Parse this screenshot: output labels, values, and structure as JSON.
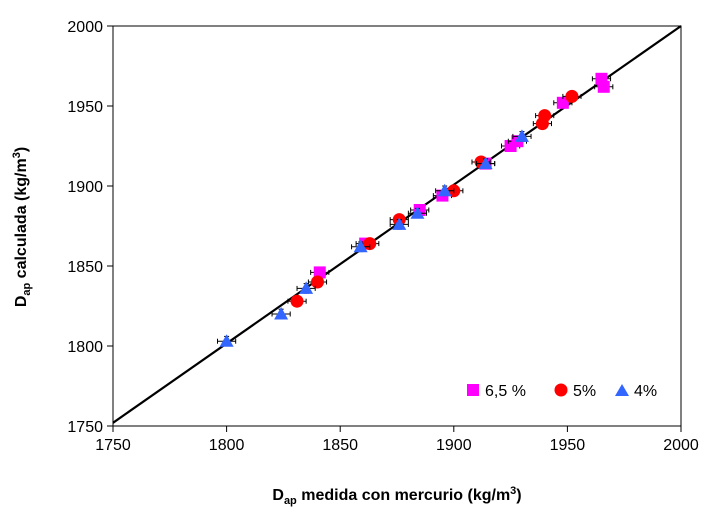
{
  "chart_data": {
    "type": "scatter",
    "xlabel": {
      "main": "D",
      "sub": "ap",
      "rest": " medida con mercurio (kg/m",
      "sup": "3",
      "close": ")"
    },
    "ylabel": {
      "main": "D",
      "sub": "ap",
      "rest": " calculada (kg/m",
      "sup": "3",
      "close": ")"
    },
    "xlim": [
      1750,
      2000
    ],
    "ylim": [
      1750,
      2000
    ],
    "xticks": [
      "1750",
      "1800",
      "1850",
      "1900",
      "1950",
      "2000"
    ],
    "yticks": [
      "1750",
      "1800",
      "1850",
      "1900",
      "1950",
      "2000"
    ],
    "grid": false,
    "legend_position": "bottom-right",
    "reference_line": {
      "x": [
        1750,
        2000
      ],
      "y": [
        1752,
        2000
      ],
      "color": "#000000"
    },
    "error_x": 4,
    "error_y": 3,
    "series": [
      {
        "name": "6,5 %",
        "marker": "square",
        "color": "#FF00FF",
        "points": [
          {
            "x": 1841,
            "y": 1846
          },
          {
            "x": 1861,
            "y": 1864
          },
          {
            "x": 1885,
            "y": 1885
          },
          {
            "x": 1895,
            "y": 1894
          },
          {
            "x": 1914,
            "y": 1914
          },
          {
            "x": 1925,
            "y": 1925
          },
          {
            "x": 1928,
            "y": 1928
          },
          {
            "x": 1948,
            "y": 1952
          },
          {
            "x": 1965,
            "y": 1967
          },
          {
            "x": 1966,
            "y": 1962
          }
        ]
      },
      {
        "name": "5%",
        "marker": "circle",
        "color": "#FF0000",
        "points": [
          {
            "x": 1831,
            "y": 1828
          },
          {
            "x": 1840,
            "y": 1840
          },
          {
            "x": 1863,
            "y": 1864
          },
          {
            "x": 1876,
            "y": 1879
          },
          {
            "x": 1900,
            "y": 1897
          },
          {
            "x": 1912,
            "y": 1915
          },
          {
            "x": 1939,
            "y": 1939
          },
          {
            "x": 1940,
            "y": 1944
          },
          {
            "x": 1952,
            "y": 1956
          }
        ]
      },
      {
        "name": "4%",
        "marker": "triangle",
        "color": "#3366FF",
        "points": [
          {
            "x": 1800,
            "y": 1803
          },
          {
            "x": 1824,
            "y": 1820
          },
          {
            "x": 1835,
            "y": 1836
          },
          {
            "x": 1859,
            "y": 1862
          },
          {
            "x": 1876,
            "y": 1876
          },
          {
            "x": 1884,
            "y": 1883
          },
          {
            "x": 1896,
            "y": 1897
          },
          {
            "x": 1914,
            "y": 1914
          },
          {
            "x": 1930,
            "y": 1931
          }
        ]
      }
    ]
  }
}
